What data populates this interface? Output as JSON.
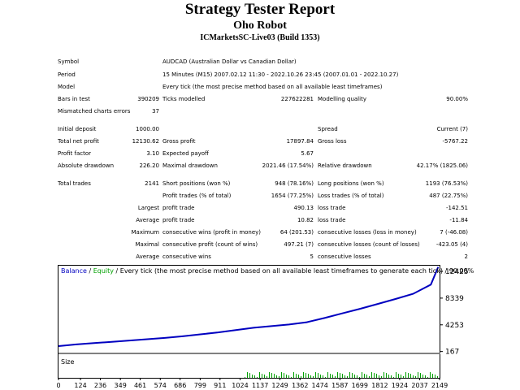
{
  "header": {
    "title": "Strategy Tester Report",
    "robot": "Oho Robot",
    "server": "ICMarketsSC-Live03 (Build 1353)"
  },
  "params": {
    "symbol_label": "Symbol",
    "symbol_value": "AUDCAD (Australian Dollar vs Canadian Dollar)",
    "period_label": "Period",
    "period_value": "15 Minutes (M15) 2007.02.12 11:30 - 2022.10.26 23:45 (2007.01.01 - 2022.10.27)",
    "model_label": "Model",
    "model_value": "Every tick (the most precise method based on all available least timeframes)",
    "bars_label": "Bars in test",
    "bars_value": "390209",
    "ticks_label": "Ticks modelled",
    "ticks_value": "227622281",
    "quality_label": "Modelling quality",
    "quality_value": "90.00%",
    "mismatch_label": "Mismatched charts errors",
    "mismatch_value": "37"
  },
  "results": {
    "initial_deposit_label": "Initial deposit",
    "initial_deposit_value": "1000.00",
    "spread_label": "Spread",
    "spread_value": "Current (7)",
    "net_profit_label": "Total net profit",
    "net_profit_value": "12130.62",
    "gross_profit_label": "Gross profit",
    "gross_profit_value": "17897.84",
    "gross_loss_label": "Gross loss",
    "gross_loss_value": "-5767.22",
    "profit_factor_label": "Profit factor",
    "profit_factor_value": "3.10",
    "expected_payoff_label": "Expected payoff",
    "expected_payoff_value": "5.67",
    "abs_drawdown_label": "Absolute drawdown",
    "abs_drawdown_value": "226.20",
    "max_drawdown_label": "Maximal drawdown",
    "max_drawdown_value": "2021.46 (17.54%)",
    "rel_drawdown_label": "Relative drawdown",
    "rel_drawdown_value": "42.17% (1825.06)"
  },
  "trades": {
    "total_label": "Total trades",
    "total_value": "2141",
    "short_label": "Short positions (won %)",
    "short_value": "948 (78.16%)",
    "long_label": "Long positions (won %)",
    "long_value": "1193 (76.53%)",
    "profit_trades_label": "Profit trades (% of total)",
    "profit_trades_value": "1654 (77.25%)",
    "loss_trades_label": "Loss trades (% of total)",
    "loss_trades_value": "487 (22.75%)",
    "largest_label": "Largest",
    "largest_profit_label": "profit trade",
    "largest_profit_value": "490.13",
    "largest_loss_label": "loss trade",
    "largest_loss_value": "-142.51",
    "average_label": "Average",
    "average_profit_label": "profit trade",
    "average_profit_value": "10.82",
    "average_loss_label": "loss trade",
    "average_loss_value": "-11.84",
    "maximum_label": "Maximum",
    "max_cons_wins_label": "consecutive wins (profit in money)",
    "max_cons_wins_value": "64 (201.53)",
    "max_cons_losses_label": "consecutive losses (loss in money)",
    "max_cons_losses_value": "7 (-46.08)",
    "maximal_label": "Maximal",
    "maximal_profit_label": "consecutive profit (count of wins)",
    "maximal_profit_value": "497.21 (7)",
    "maximal_loss_label": "consecutive losses (count of losses)",
    "maximal_loss_value": "-423.05 (4)",
    "average2_label": "Average",
    "avg_cons_wins_label": "consecutive wins",
    "avg_cons_wins_value": "5",
    "avg_cons_losses_label": "consecutive losses",
    "avg_cons_losses_value": "2"
  },
  "chart_data": {
    "type": "line",
    "legend_balance": "Balance",
    "legend_sep": " / ",
    "legend_equity": "Equity",
    "legend_rest": " / Every tick (the most precise method based on all available least timeframes to generate each tick) / 90.00%",
    "size_label": "Size",
    "y_ticks": [
      "12425",
      "8339",
      "4253",
      "167"
    ],
    "y_tick_values": [
      12425,
      8339,
      4253,
      167
    ],
    "x_ticks": [
      "0",
      "124",
      "236",
      "349",
      "461",
      "574",
      "686",
      "799",
      "911",
      "1024",
      "1137",
      "1249",
      "1362",
      "1474",
      "1587",
      "1699",
      "1812",
      "1924",
      "2037",
      "2149"
    ],
    "x_tick_values": [
      0,
      124,
      236,
      349,
      461,
      574,
      686,
      799,
      911,
      1024,
      1137,
      1249,
      1362,
      1474,
      1587,
      1699,
      1812,
      1924,
      2037,
      2149
    ],
    "xlim": [
      0,
      2149
    ],
    "ylim": [
      0,
      13300
    ],
    "balance": {
      "x": [
        0,
        100,
        200,
        300,
        400,
        500,
        600,
        700,
        800,
        900,
        1000,
        1100,
        1200,
        1300,
        1400,
        1500,
        1600,
        1700,
        1800,
        1900,
        2000,
        2100,
        2141
      ],
      "y": [
        1000,
        1250,
        1450,
        1650,
        1850,
        2050,
        2250,
        2500,
        2800,
        3100,
        3450,
        3800,
        4050,
        4300,
        4650,
        5300,
        6000,
        6700,
        7450,
        8200,
        9000,
        10400,
        13100
      ]
    },
    "colors": {
      "balance": "#0000c0",
      "equity": "#00a000",
      "size_bars": "#00a000",
      "legend_balance": "#0000c0",
      "legend_equity": "#00a000"
    }
  }
}
